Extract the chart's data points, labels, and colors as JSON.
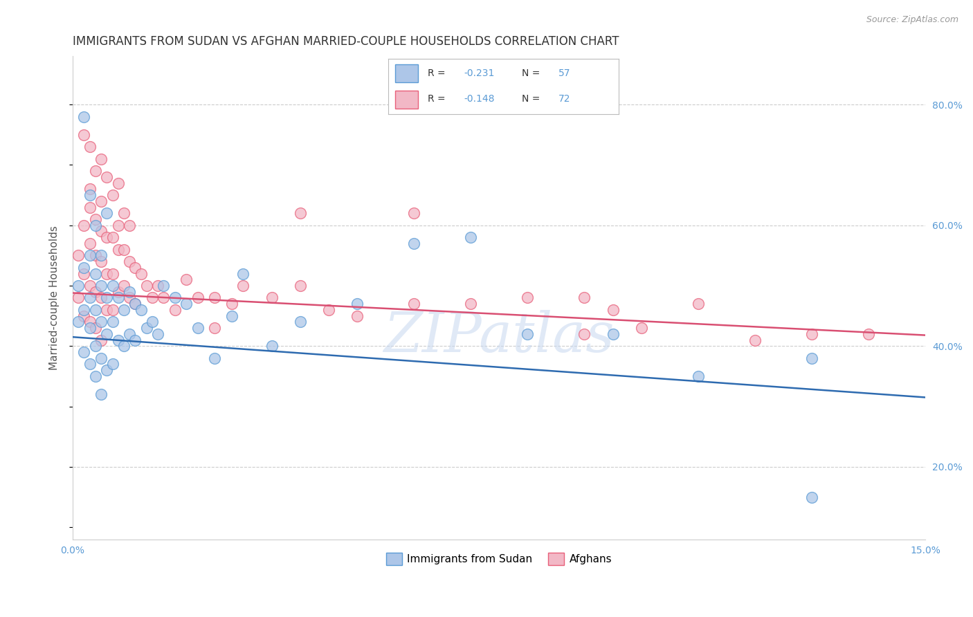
{
  "title": "IMMIGRANTS FROM SUDAN VS AFGHAN MARRIED-COUPLE HOUSEHOLDS CORRELATION CHART",
  "source": "Source: ZipAtlas.com",
  "ylabel": "Married-couple Households",
  "xmin": 0.0,
  "xmax": 0.15,
  "ymin": 0.08,
  "ymax": 0.88,
  "ytick_positions": [
    0.2,
    0.4,
    0.6,
    0.8
  ],
  "ytick_labels": [
    "20.0%",
    "40.0%",
    "60.0%",
    "80.0%"
  ],
  "legend_label_sudan": "Immigrants from Sudan",
  "legend_label_afghan": "Afghans",
  "sudan_color": "#5b9bd5",
  "afghan_color": "#e8607a",
  "sudan_color_fill": "#adc6e8",
  "afghan_color_fill": "#f2b8c6",
  "trend_sudan_color": "#2e6bb0",
  "trend_afghan_color": "#d94f72",
  "watermark": "ZIPatlas",
  "watermark_color": "#c8d8f0",
  "sudan_trend_x0": 0.0,
  "sudan_trend_y0": 0.415,
  "sudan_trend_x1": 0.15,
  "sudan_trend_y1": 0.315,
  "afghan_trend_x0": 0.0,
  "afghan_trend_y0": 0.488,
  "afghan_trend_x1": 0.15,
  "afghan_trend_y1": 0.418,
  "sudan_scatter_x": [
    0.001,
    0.001,
    0.002,
    0.002,
    0.002,
    0.003,
    0.003,
    0.003,
    0.003,
    0.004,
    0.004,
    0.004,
    0.004,
    0.005,
    0.005,
    0.005,
    0.005,
    0.006,
    0.006,
    0.006,
    0.007,
    0.007,
    0.007,
    0.008,
    0.008,
    0.009,
    0.009,
    0.01,
    0.01,
    0.011,
    0.011,
    0.012,
    0.013,
    0.014,
    0.015,
    0.016,
    0.018,
    0.02,
    0.022,
    0.025,
    0.028,
    0.03,
    0.035,
    0.04,
    0.05,
    0.06,
    0.07,
    0.08,
    0.095,
    0.11,
    0.13,
    0.002,
    0.003,
    0.004,
    0.005,
    0.006,
    0.13
  ],
  "sudan_scatter_y": [
    0.5,
    0.44,
    0.53,
    0.46,
    0.39,
    0.55,
    0.48,
    0.43,
    0.37,
    0.52,
    0.46,
    0.4,
    0.35,
    0.5,
    0.44,
    0.38,
    0.32,
    0.48,
    0.42,
    0.36,
    0.5,
    0.44,
    0.37,
    0.48,
    0.41,
    0.46,
    0.4,
    0.49,
    0.42,
    0.47,
    0.41,
    0.46,
    0.43,
    0.44,
    0.42,
    0.5,
    0.48,
    0.47,
    0.43,
    0.38,
    0.45,
    0.52,
    0.4,
    0.44,
    0.47,
    0.57,
    0.58,
    0.42,
    0.42,
    0.35,
    0.38,
    0.78,
    0.65,
    0.6,
    0.55,
    0.62,
    0.15
  ],
  "afghan_scatter_x": [
    0.001,
    0.001,
    0.002,
    0.002,
    0.002,
    0.003,
    0.003,
    0.003,
    0.003,
    0.004,
    0.004,
    0.004,
    0.004,
    0.005,
    0.005,
    0.005,
    0.005,
    0.006,
    0.006,
    0.006,
    0.007,
    0.007,
    0.007,
    0.008,
    0.008,
    0.009,
    0.009,
    0.01,
    0.01,
    0.011,
    0.011,
    0.012,
    0.013,
    0.014,
    0.015,
    0.016,
    0.018,
    0.02,
    0.022,
    0.025,
    0.028,
    0.03,
    0.035,
    0.04,
    0.045,
    0.05,
    0.06,
    0.07,
    0.08,
    0.09,
    0.095,
    0.1,
    0.11,
    0.12,
    0.13,
    0.14,
    0.002,
    0.003,
    0.003,
    0.004,
    0.005,
    0.005,
    0.006,
    0.007,
    0.008,
    0.008,
    0.009,
    0.01,
    0.025,
    0.04,
    0.06,
    0.09
  ],
  "afghan_scatter_y": [
    0.55,
    0.48,
    0.6,
    0.52,
    0.45,
    0.63,
    0.57,
    0.5,
    0.44,
    0.61,
    0.55,
    0.49,
    0.43,
    0.59,
    0.54,
    0.48,
    0.41,
    0.58,
    0.52,
    0.46,
    0.58,
    0.52,
    0.46,
    0.56,
    0.49,
    0.56,
    0.5,
    0.54,
    0.48,
    0.53,
    0.47,
    0.52,
    0.5,
    0.48,
    0.5,
    0.48,
    0.46,
    0.51,
    0.48,
    0.43,
    0.47,
    0.5,
    0.48,
    0.5,
    0.46,
    0.45,
    0.47,
    0.47,
    0.48,
    0.42,
    0.46,
    0.43,
    0.47,
    0.41,
    0.42,
    0.42,
    0.75,
    0.73,
    0.66,
    0.69,
    0.71,
    0.64,
    0.68,
    0.65,
    0.67,
    0.6,
    0.62,
    0.6,
    0.48,
    0.62,
    0.62,
    0.48
  ]
}
